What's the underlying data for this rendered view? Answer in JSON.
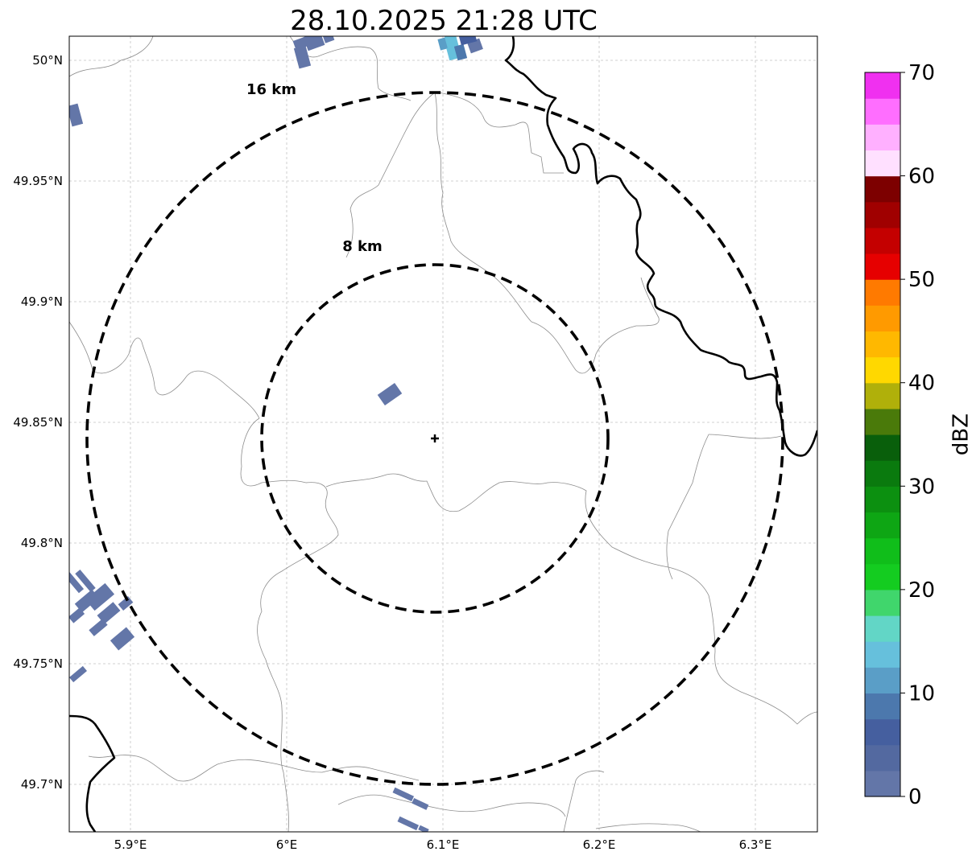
{
  "title": "28.10.2025 21:28 UTC",
  "map": {
    "lon_ticks": [
      "5.9°E",
      "6°E",
      "6.1°E",
      "6.2°E",
      "6.3°E"
    ],
    "lat_ticks": [
      "50°N",
      "49.95°N",
      "49.9°N",
      "49.85°N",
      "49.8°N",
      "49.75°N",
      "49.7°N"
    ],
    "range_rings": [
      "16 km",
      "8 km"
    ],
    "radar_site_icon": "plus-marker-icon",
    "grid": "dashed light gray"
  },
  "colorbar": {
    "label": "dBZ",
    "ticks": [
      "0",
      "10",
      "20",
      "30",
      "40",
      "50",
      "60",
      "70"
    ],
    "colors": [
      "#6376a8",
      "#5369a0",
      "#455f9f",
      "#4c78ad",
      "#5a9ec7",
      "#66c0dc",
      "#62d6c6",
      "#40d66c",
      "#14cc20",
      "#10be1a",
      "#0ea614",
      "#0c9010",
      "#0a7a0e",
      "#095f0b",
      "#4a7a0a",
      "#b0b00a",
      "#ffd800",
      "#ffb800",
      "#ff9a00",
      "#ff7a00",
      "#e60000",
      "#c40000",
      "#a00000",
      "#7d0000",
      "#ffe0ff",
      "#ffb0ff",
      "#ff6eff",
      "#f030f0"
    ]
  }
}
